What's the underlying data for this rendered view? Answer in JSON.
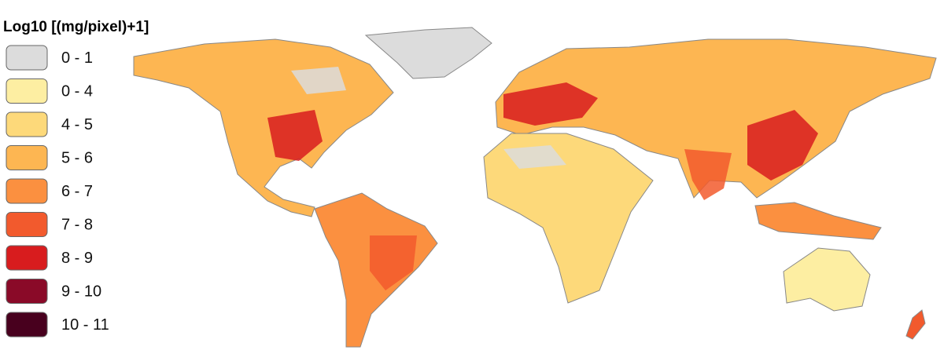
{
  "legend": {
    "title": "Log10 [(mg/pixel)+1]",
    "items": [
      {
        "label": "0 - 1",
        "color": "#dcdcdc"
      },
      {
        "label": "0 - 4",
        "color": "#fdeea2"
      },
      {
        "label": "4 - 5",
        "color": "#fdd97a"
      },
      {
        "label": "5 - 6",
        "color": "#fdb652"
      },
      {
        "label": "6 - 7",
        "color": "#fb9040"
      },
      {
        "label": "7 - 8",
        "color": "#f25a2d"
      },
      {
        "label": "8 - 9",
        "color": "#d81c1e"
      },
      {
        "label": "9 - 10",
        "color": "#8a0a28"
      },
      {
        "label": "10 - 11",
        "color": "#48001e"
      }
    ]
  }
}
